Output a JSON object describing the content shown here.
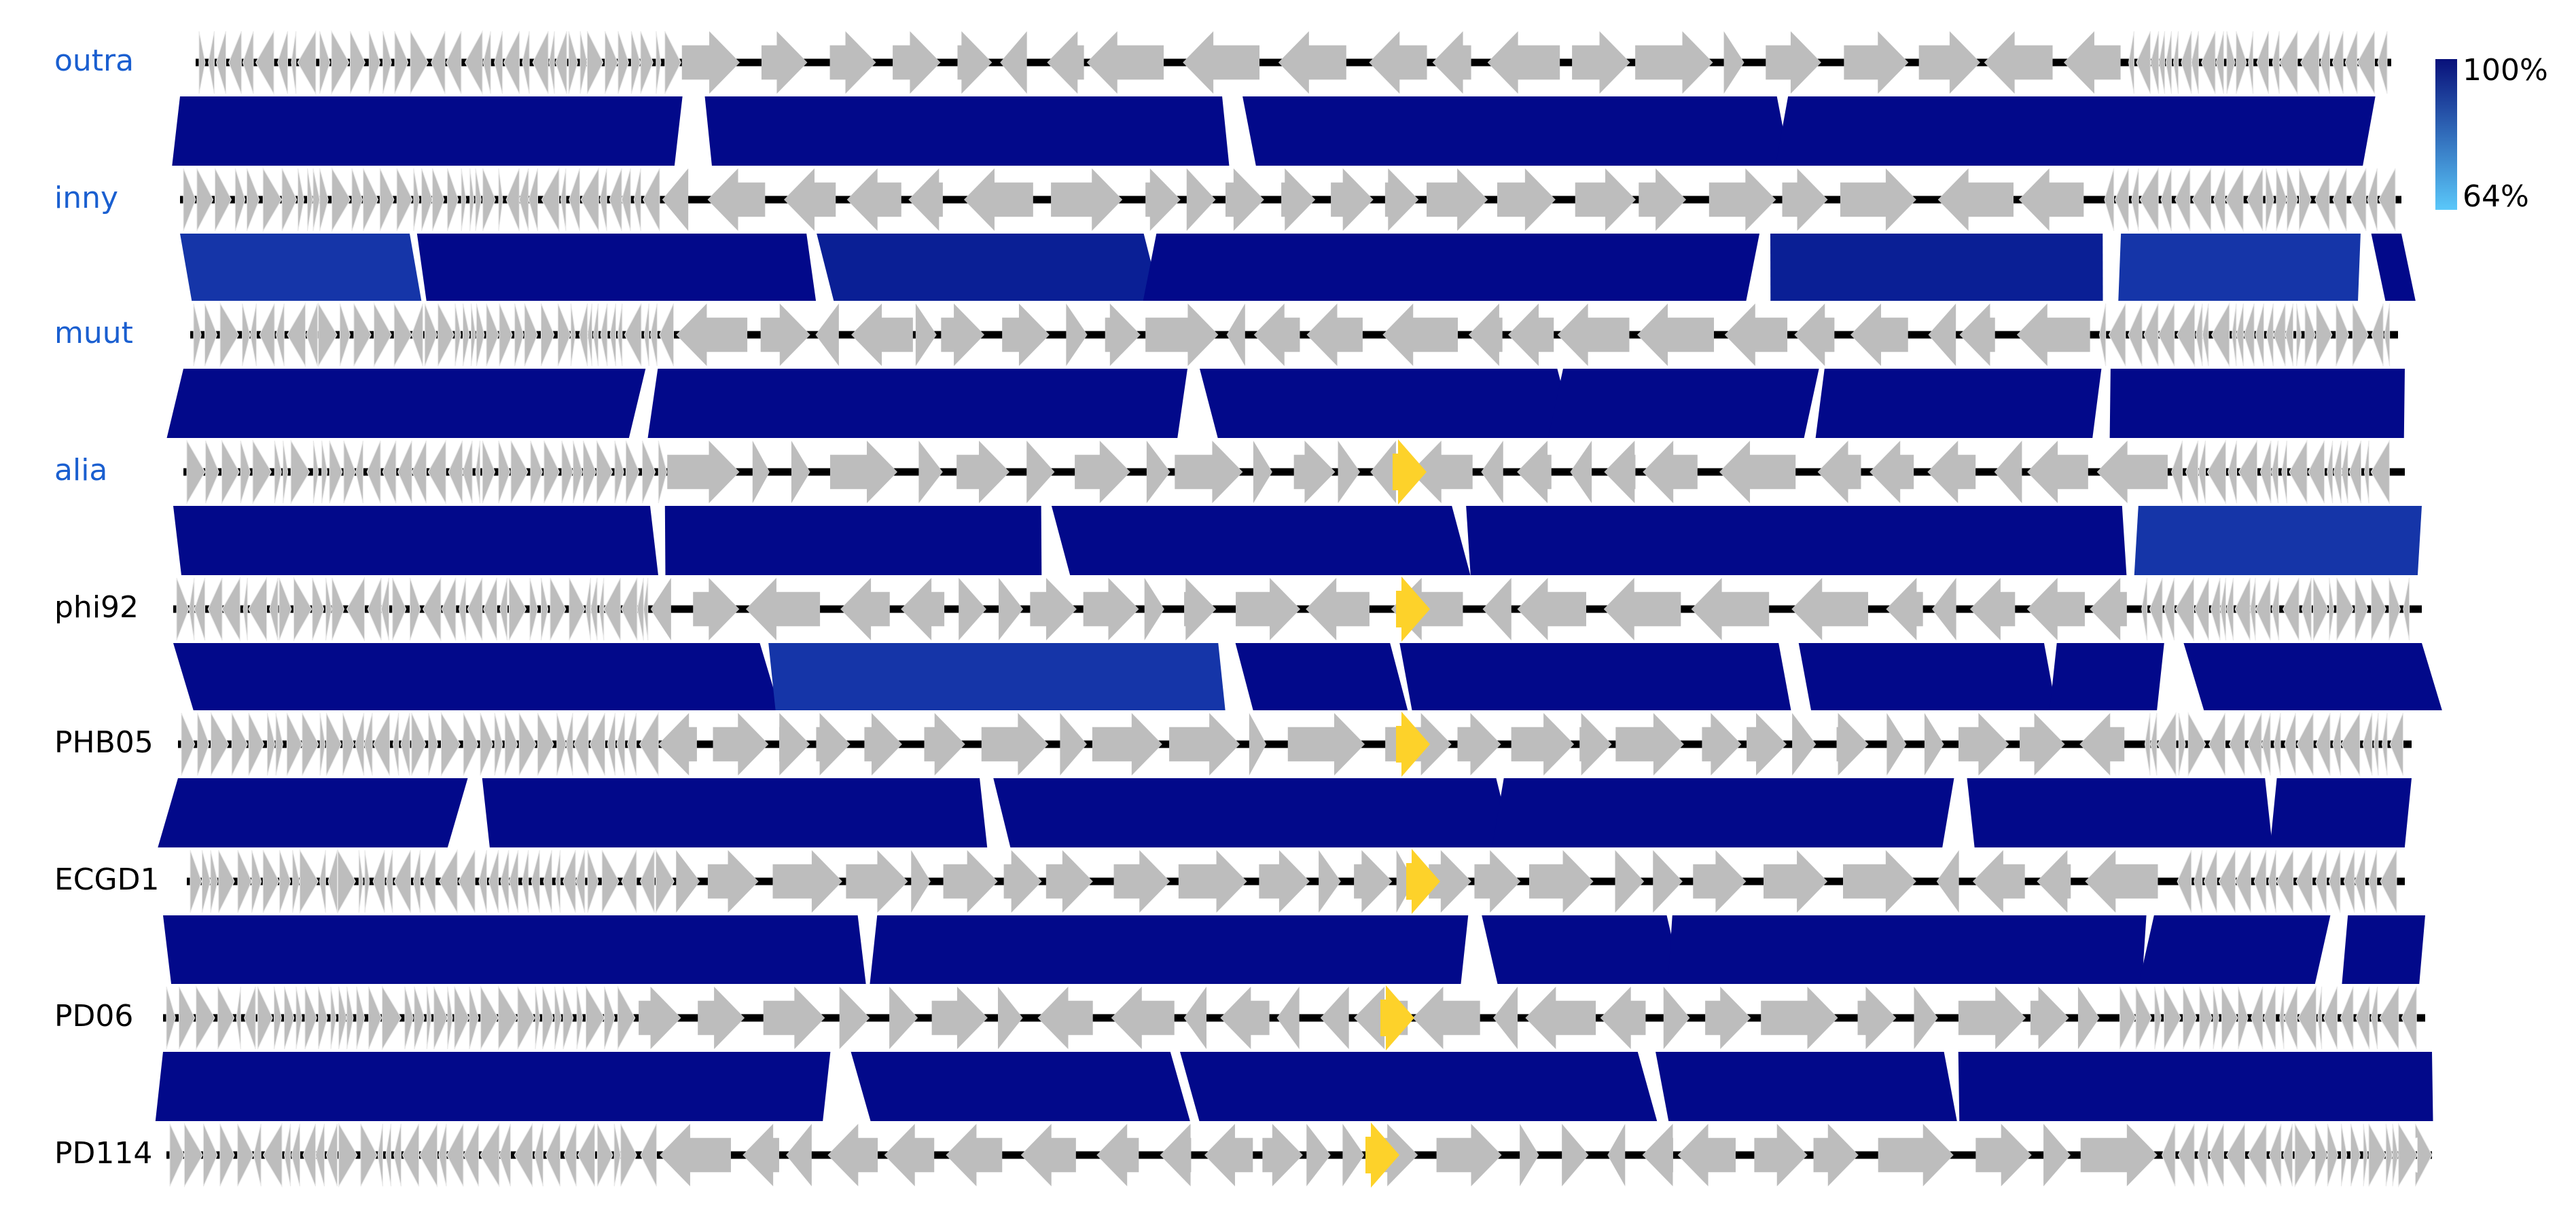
{
  "tracks": [
    {
      "label": "outra"
    },
    {
      "label": "inny"
    },
    {
      "label": "muut"
    },
    {
      "label": "alia"
    },
    {
      "label": "phi92"
    },
    {
      "label": "PHB05"
    },
    {
      "label": "ECGD1"
    },
    {
      "label": "PD06"
    },
    {
      "label": "PD114"
    }
  ],
  "legend": {
    "max_label": "100%",
    "min_label": "64%"
  }
}
